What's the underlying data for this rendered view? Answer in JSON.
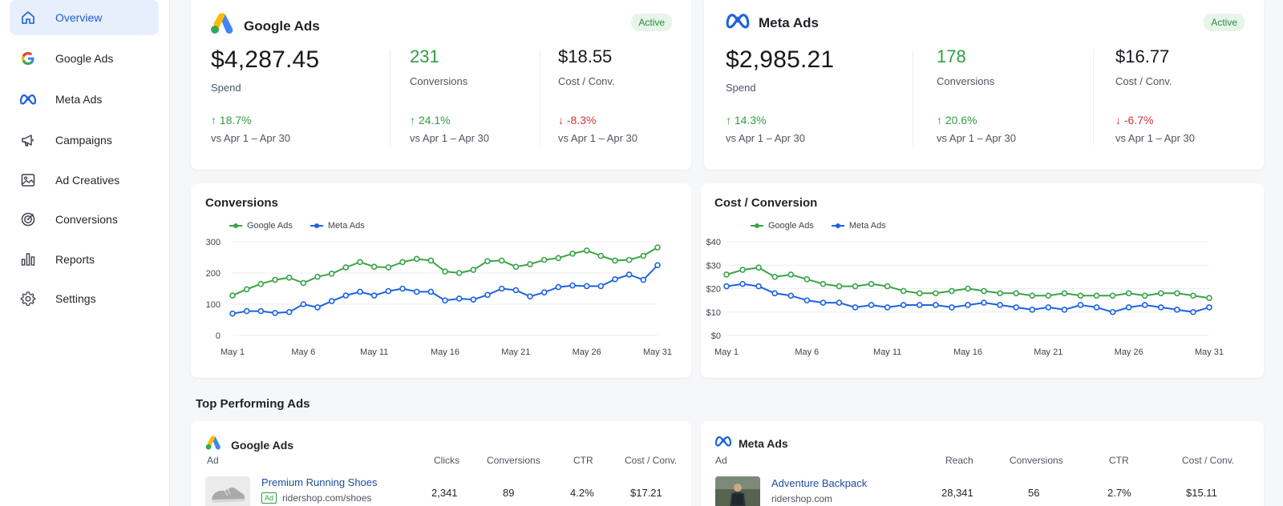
{
  "sidebar": {
    "items": [
      {
        "label": "Overview",
        "icon": "home-icon"
      },
      {
        "label": "Google Ads",
        "icon": "google-icon"
      },
      {
        "label": "Meta Ads",
        "icon": "meta-icon"
      },
      {
        "label": "Campaigns",
        "icon": "megaphone-icon"
      },
      {
        "label": "Ad Creatives",
        "icon": "image-icon"
      },
      {
        "label": "Conversions",
        "icon": "target-icon"
      },
      {
        "label": "Reports",
        "icon": "bar-chart-icon"
      },
      {
        "label": "Settings",
        "icon": "gear-icon"
      }
    ]
  },
  "kpis": {
    "google": {
      "name": "Google Ads",
      "badge": "Active",
      "spend": "$4,287.45",
      "spend_label": "Spend",
      "spend_delta": "18.7%",
      "conversions": "231",
      "conversions_label": "Conversions",
      "conversions_delta": "24.1%",
      "cpc": "$18.55",
      "cpc_label": "Cost / Conv.",
      "cpc_delta": "-8.3%",
      "compare": "vs Apr 1 – Apr 30"
    },
    "meta": {
      "name": "Meta Ads",
      "badge": "Active",
      "spend": "$2,985.21",
      "spend_label": "Spend",
      "spend_delta": "14.3%",
      "conversions": "178",
      "conversions_label": "Conversions",
      "conversions_delta": "20.6%",
      "cpc": "$16.77",
      "cpc_label": "Cost / Conv.",
      "cpc_delta": "-6.7%",
      "compare": "vs Apr 1 – Apr 30"
    }
  },
  "colors": {
    "google": "#3aa447",
    "meta": "#1e63e0",
    "accent": "#1a5fd0",
    "up": "#2f9e44",
    "down": "#d6333b"
  },
  "chart_data": [
    {
      "type": "line",
      "title": "Conversions",
      "x": [
        "May 1",
        "May 2",
        "May 3",
        "May 4",
        "May 5",
        "May 6",
        "May 7",
        "May 8",
        "May 9",
        "May 10",
        "May 11",
        "May 12",
        "May 13",
        "May 14",
        "May 15",
        "May 16",
        "May 17",
        "May 18",
        "May 19",
        "May 20",
        "May 21",
        "May 22",
        "May 23",
        "May 24",
        "May 25",
        "May 26",
        "May 27",
        "May 28",
        "May 29",
        "May 30",
        "May 31"
      ],
      "xticks": [
        "May 1",
        "May 6",
        "May 11",
        "May 16",
        "May 21",
        "May 26",
        "May 31"
      ],
      "yticks": [
        "0",
        "100",
        "200",
        "300"
      ],
      "ylim": [
        0,
        300
      ],
      "series": [
        {
          "name": "Google Ads",
          "values": [
            128,
            148,
            165,
            178,
            185,
            168,
            188,
            198,
            218,
            235,
            220,
            218,
            235,
            245,
            240,
            205,
            200,
            210,
            238,
            240,
            220,
            228,
            242,
            248,
            262,
            272,
            255,
            240,
            242,
            255,
            282
          ]
        },
        {
          "name": "Meta Ads",
          "values": [
            70,
            78,
            78,
            72,
            75,
            100,
            90,
            110,
            128,
            140,
            128,
            142,
            150,
            140,
            140,
            112,
            118,
            115,
            130,
            150,
            145,
            125,
            138,
            155,
            160,
            158,
            158,
            180,
            195,
            178,
            225
          ]
        }
      ],
      "legend": "top-left"
    },
    {
      "type": "line",
      "title": "Cost / Conversion",
      "x": [
        "May 1",
        "May 2",
        "May 3",
        "May 4",
        "May 5",
        "May 6",
        "May 7",
        "May 8",
        "May 9",
        "May 10",
        "May 11",
        "May 12",
        "May 13",
        "May 14",
        "May 15",
        "May 16",
        "May 17",
        "May 18",
        "May 19",
        "May 20",
        "May 21",
        "May 22",
        "May 23",
        "May 24",
        "May 25",
        "May 26",
        "May 27",
        "May 28",
        "May 29",
        "May 30",
        "May 31"
      ],
      "xticks": [
        "May 1",
        "May 6",
        "May 11",
        "May 16",
        "May 21",
        "May 26",
        "May 31"
      ],
      "yticks": [
        "$0",
        "$10",
        "$20",
        "$30",
        "$40"
      ],
      "ylim": [
        0,
        40
      ],
      "series": [
        {
          "name": "Google Ads",
          "values": [
            26,
            28,
            29,
            25,
            26,
            24,
            22,
            21,
            21,
            22,
            21,
            19,
            18,
            18,
            19,
            20,
            19,
            18,
            18,
            17,
            17,
            18,
            17,
            17,
            17,
            18,
            17,
            18,
            18,
            17,
            16
          ]
        },
        {
          "name": "Meta Ads",
          "values": [
            21,
            22,
            21,
            18,
            17,
            15,
            14,
            14,
            12,
            13,
            12,
            13,
            13,
            13,
            12,
            13,
            14,
            13,
            12,
            11,
            12,
            11,
            13,
            12,
            10,
            12,
            13,
            12,
            11,
            10,
            12
          ]
        }
      ],
      "legend": "top-left"
    }
  ],
  "top_ads": {
    "title": "Top Performing Ads",
    "google": {
      "name": "Google Ads",
      "columns": [
        "Ad",
        "Clicks",
        "Conversions",
        "CTR",
        "Cost / Conv."
      ],
      "rows": [
        {
          "title": "Premium Running Shoes",
          "tag": "Ad",
          "url": "ridershop.com/shoes",
          "clicks": "2,341",
          "conversions": "89",
          "ctr": "4.2%",
          "cost": "$17.21"
        }
      ]
    },
    "meta": {
      "name": "Meta Ads",
      "columns": [
        "Ad",
        "Reach",
        "Conversions",
        "CTR",
        "Cost / Conv."
      ],
      "rows": [
        {
          "title": "Adventure Backpack",
          "url": "ridershop.com",
          "reach": "28,341",
          "conversions": "56",
          "ctr": "2.7%",
          "cost": "$15.11"
        }
      ]
    }
  }
}
